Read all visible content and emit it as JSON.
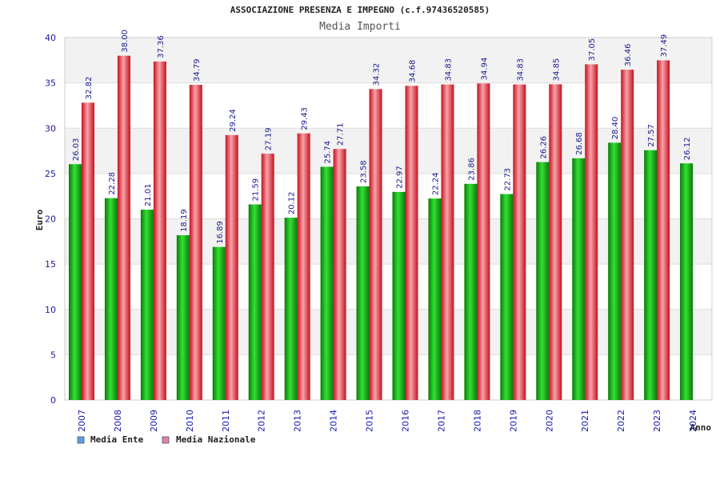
{
  "chart_data": {
    "type": "bar",
    "title": "ASSOCIAZIONE PRESENZA E IMPEGNO (c.f.97436520585)",
    "subtitle": "Media Importi",
    "xlabel": "Anno",
    "ylabel": "Euro",
    "ylim": [
      0,
      40
    ],
    "yticks": [
      "0",
      "5",
      "10",
      "15",
      "20",
      "25",
      "30",
      "35",
      "40"
    ],
    "categories": [
      "2007",
      "2008",
      "2009",
      "2010",
      "2011",
      "2012",
      "2013",
      "2014",
      "2015",
      "2016",
      "2017",
      "2018",
      "2019",
      "2020",
      "2021",
      "2022",
      "2023",
      "2024"
    ],
    "series": [
      {
        "name": "Media Ente",
        "color": "#22cc22",
        "legend_color": "#5aa0e6",
        "values": [
          26.03,
          22.28,
          21.01,
          18.19,
          16.89,
          21.59,
          20.12,
          25.74,
          23.58,
          22.97,
          22.24,
          23.86,
          22.73,
          26.26,
          26.68,
          28.4,
          27.57,
          26.12
        ],
        "labels": [
          "26.03",
          "22.28",
          "21.01",
          "18.19",
          "16.89",
          "21.59",
          "20.12",
          "25.74",
          "23.58",
          "22.97",
          "22.24",
          "23.86",
          "22.73",
          "26.26",
          "26.68",
          "28.40",
          "27.57",
          "26.12"
        ]
      },
      {
        "name": "Media Nazionale",
        "color": "#ee2233",
        "legend_color": "#d987b0",
        "values": [
          32.82,
          38.0,
          37.36,
          34.79,
          29.24,
          27.19,
          29.43,
          27.71,
          34.32,
          34.68,
          34.83,
          34.94,
          34.83,
          34.85,
          37.05,
          36.46,
          37.49,
          null
        ],
        "labels": [
          "32.82",
          "38.00",
          "37.36",
          "34.79",
          "29.24",
          "27.19",
          "29.43",
          "27.71",
          "34.32",
          "34.68",
          "34.83",
          "34.94",
          "34.83",
          "34.85",
          "37.05",
          "36.46",
          "37.49",
          null
        ]
      }
    ],
    "grid": true,
    "legend_position": "bottom-left"
  }
}
